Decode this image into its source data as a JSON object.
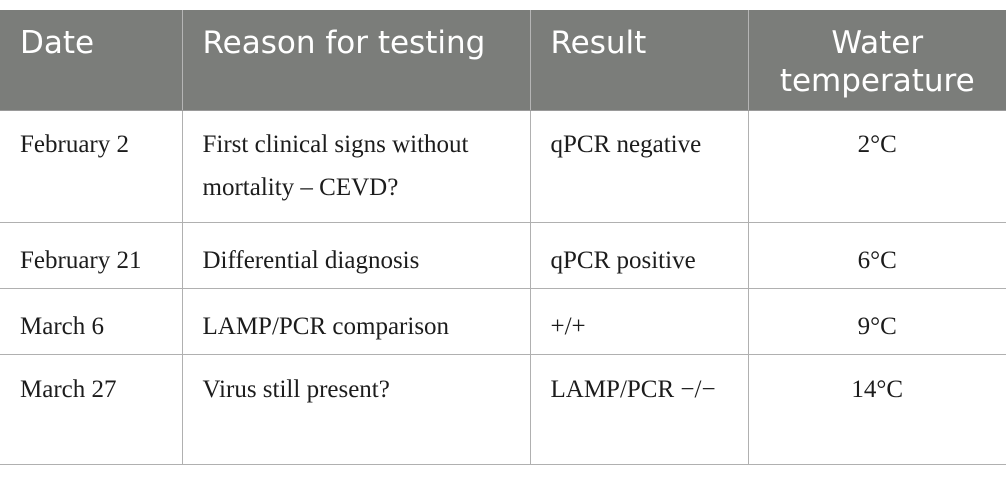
{
  "table": {
    "headers": {
      "date": "Date",
      "reason": "Reason for testing",
      "result": "Result",
      "temp": "Water temperature"
    },
    "rows": [
      {
        "date": "February 2",
        "reason": "First clinical signs without mortality – CEVD?",
        "result": "qPCR negative",
        "temp": "2°C"
      },
      {
        "date": "February 21",
        "reason": "Differential diagnosis",
        "result": "qPCR positive",
        "temp": "6°C"
      },
      {
        "date": "March 6",
        "reason": "LAMP/PCR comparison",
        "result": "+/+",
        "temp": "9°C"
      },
      {
        "date": "March 27",
        "reason": "Virus still present?",
        "result": "LAMP/PCR −/−",
        "temp": "14°C"
      }
    ]
  }
}
